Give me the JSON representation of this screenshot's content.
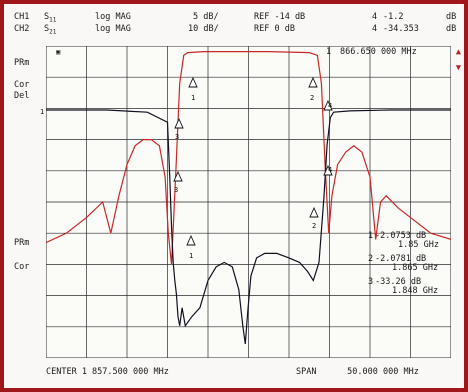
{
  "header": {
    "ch1": {
      "label": "CH1",
      "param": "S",
      "param_sub": "11",
      "format": "log MAG",
      "scale": "5 dB/",
      "ref": "REF -14 dB",
      "marker_label": "4",
      "marker_value": "-1.2",
      "marker_unit": "dB"
    },
    "ch2": {
      "label": "CH2",
      "param": "S",
      "param_sub": "21",
      "format": "log MAG",
      "scale": "10 dB/",
      "ref": "REF 0 dB",
      "marker_label": "4",
      "marker_value": "-34.353",
      "marker_unit": "dB"
    }
  },
  "top_marker": {
    "label": "1",
    "freq": "866.650 000 MHz"
  },
  "left_labels": {
    "top_mode": "PRm",
    "top_cor": "Cor",
    "top_del": "Del",
    "ref1": "1",
    "bot_mode": "PRm",
    "bot_cor": "Cor"
  },
  "marker_table": [
    {
      "label": "1",
      "value": "-2.0753 dB",
      "freq": "1.85 GHz"
    },
    {
      "label": "2",
      "value": "-2.0781 dB",
      "freq": "1.865 GHz"
    },
    {
      "label": "3",
      "value": "-33.26 dB",
      "freq": "1.848 GHz"
    }
  ],
  "footer": {
    "center": "CENTER 1 857.500 000 MHz",
    "span": "SPAN      50.000 000 MHz"
  },
  "colors": {
    "frame": "#a0171a",
    "grid": "#2a2a2a",
    "s21_trace": "#c62828",
    "s11_trace": "#101020"
  },
  "chart_data": {
    "type": "line",
    "x_range_mhz": [
      1832.5,
      1882.5
    ],
    "grid": true,
    "series": [
      {
        "name": "S21",
        "x": [
          1832.5,
          1835,
          1837.5,
          1839.5,
          1840.5,
          1841.5,
          1842.5,
          1843.5,
          1844.5,
          1845.5,
          1846.5,
          1847.2,
          1847.6,
          1848,
          1848.5,
          1849,
          1849.5,
          1850,
          1852,
          1855,
          1860,
          1865,
          1866,
          1866.5,
          1867,
          1867.4,
          1867.8,
          1868.5,
          1869.5,
          1870.5,
          1871.5,
          1872.5,
          1873.2,
          1873.8,
          1874.5,
          1876,
          1878,
          1880,
          1882.5
        ],
        "y": [
          -63,
          -60,
          -55,
          -50,
          -60,
          -48,
          -38,
          -32,
          -30,
          -30,
          -32,
          -42,
          -60,
          -70,
          -42,
          -12,
          -3,
          -2.1,
          -1.8,
          -1.8,
          -1.8,
          -2.1,
          -3,
          -12,
          -40,
          -60,
          -48,
          -38,
          -34,
          -32,
          -34,
          -42,
          -62,
          -50,
          -48,
          -52,
          -56,
          -60,
          -62
        ]
      },
      {
        "name": "S11",
        "x": [
          1832.5,
          1840,
          1845,
          1847.5,
          1847.8,
          1848,
          1848.2,
          1848.4,
          1848.6,
          1848.8,
          1849,
          1849.3,
          1849.7,
          1850.5,
          1851.5,
          1852.5,
          1853.5,
          1854.5,
          1855.5,
          1856.3,
          1856.8,
          1857.1,
          1857.4,
          1857.8,
          1858.5,
          1859.5,
          1861,
          1862.5,
          1863.8,
          1864.8,
          1865.5,
          1866.2,
          1866.8,
          1867.2,
          1867.6,
          1868,
          1870,
          1875,
          1882.5
        ],
        "y": [
          -14.3,
          -14.3,
          -14.8,
          -17,
          -30,
          -40,
          -48,
          -52,
          -55,
          -60,
          -62,
          -58,
          -62,
          -60,
          -58,
          -52,
          -49,
          -48,
          -49,
          -54,
          -62,
          -66,
          -59,
          -51,
          -47,
          -46,
          -46,
          -47,
          -48,
          -50,
          -52,
          -48,
          -34,
          -22,
          -16,
          -14.8,
          -14.5,
          -14.3,
          -14.3
        ]
      }
    ]
  }
}
